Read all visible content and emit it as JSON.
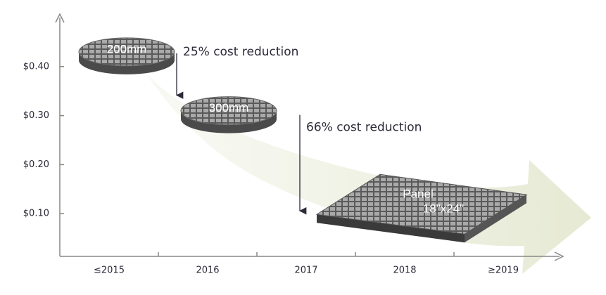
{
  "chart_data": {
    "type": "infographic",
    "categories": [
      "≤2015",
      "2016",
      "2017",
      "2018",
      "≥2019"
    ],
    "ylim": [
      0,
      0.5
    ],
    "yticks": [
      {
        "value": 0.4,
        "label": "$0.40"
      },
      {
        "value": 0.3,
        "label": "$0.30"
      },
      {
        "value": 0.2,
        "label": "$0.20"
      },
      {
        "value": 0.1,
        "label": "$0.10"
      }
    ],
    "items": [
      {
        "label": "200mm",
        "value": 0.43
      },
      {
        "label": "300mm",
        "value": 0.31
      },
      {
        "label": "Panel",
        "sublabel": "18\"x24\"",
        "value": 0.12
      }
    ],
    "annotations": [
      "25% cost reduction",
      "66% cost reduction"
    ]
  }
}
